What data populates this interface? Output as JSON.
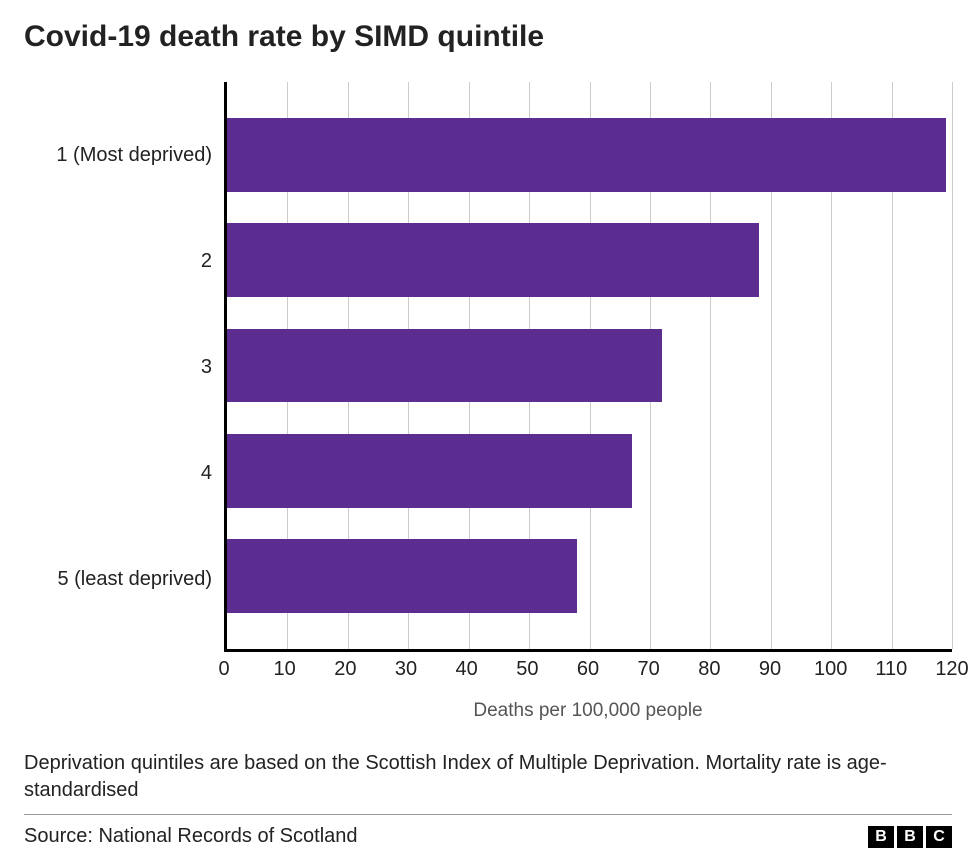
{
  "chart": {
    "type": "bar-horizontal",
    "title": "Covid-19 death rate by SIMD quintile",
    "categories": [
      "1 (Most deprived)",
      "2",
      "3",
      "4",
      "5 (least deprived)"
    ],
    "values": [
      119,
      88,
      72,
      67,
      58
    ],
    "bar_color": "#5c2d91",
    "background_color": "#ffffff",
    "grid_color": "#cccccc",
    "axis_color": "#000000",
    "xlim": [
      0,
      120
    ],
    "xtick_step": 10,
    "xticks": [
      0,
      10,
      20,
      30,
      40,
      50,
      60,
      70,
      80,
      90,
      100,
      110,
      120
    ],
    "xlabel": "Deaths per 100,000 people",
    "title_fontsize": 30,
    "label_fontsize": 20,
    "tick_fontsize": 20,
    "bar_height_pct": 70
  },
  "note": "Deprivation quintiles are based on the Scottish Index of Multiple Deprivation. Mortality rate is age-standardised",
  "source": "Source: National Records of Scotland",
  "logo_letters": [
    "B",
    "B",
    "C"
  ]
}
